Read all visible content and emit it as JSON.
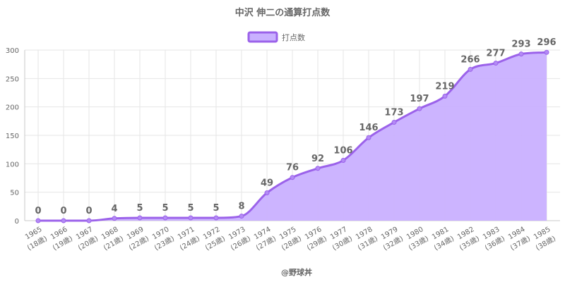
{
  "chart_data": {
    "type": "area",
    "title": "中沢 伸二の通算打点数",
    "legend": {
      "position": "top",
      "label": "打点数"
    },
    "footer": "@野球丼",
    "colors": {
      "fill": "#c9b0ff",
      "stroke": "#9b62ea",
      "point": "#b38af5"
    },
    "ylim": [
      0,
      300
    ],
    "yticks": [
      0,
      50,
      100,
      150,
      200,
      250,
      300
    ],
    "grid": true,
    "categories": [
      {
        "year": "1965",
        "age": "(18歳)"
      },
      {
        "year": "1966",
        "age": "(19歳)"
      },
      {
        "year": "1967",
        "age": "(20歳)"
      },
      {
        "year": "1968",
        "age": "(21歳)"
      },
      {
        "year": "1969",
        "age": "(22歳)"
      },
      {
        "year": "1970",
        "age": "(23歳)"
      },
      {
        "year": "1971",
        "age": "(24歳)"
      },
      {
        "year": "1972",
        "age": "(25歳)"
      },
      {
        "year": "1973",
        "age": "(26歳)"
      },
      {
        "year": "1974",
        "age": "(27歳)"
      },
      {
        "year": "1975",
        "age": "(28歳)"
      },
      {
        "year": "1976",
        "age": "(29歳)"
      },
      {
        "year": "1977",
        "age": "(30歳)"
      },
      {
        "year": "1978",
        "age": "(31歳)"
      },
      {
        "year": "1979",
        "age": "(32歳)"
      },
      {
        "year": "1980",
        "age": "(33歳)"
      },
      {
        "year": "1981",
        "age": "(34歳)"
      },
      {
        "year": "1982",
        "age": "(35歳)"
      },
      {
        "year": "1983",
        "age": "(36歳)"
      },
      {
        "year": "1984",
        "age": "(37歳)"
      },
      {
        "year": "1985",
        "age": "(38歳)"
      }
    ],
    "series": [
      {
        "name": "打点数",
        "values": [
          0,
          0,
          0,
          4,
          5,
          5,
          5,
          5,
          8,
          49,
          76,
          92,
          106,
          146,
          173,
          197,
          219,
          266,
          277,
          293,
          296
        ]
      }
    ]
  }
}
